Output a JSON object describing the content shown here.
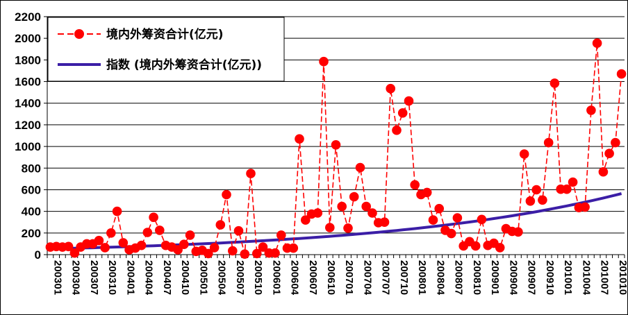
{
  "chart_data": {
    "type": "line",
    "title": "",
    "xlabel": "",
    "ylabel": "",
    "ylim": [
      0,
      2200
    ],
    "yticks": [
      0,
      200,
      400,
      600,
      800,
      1000,
      1200,
      1400,
      1600,
      1800,
      2000,
      2200
    ],
    "grid": "horizontal",
    "legend_position": "top-left",
    "x": [
      "200301",
      "200302",
      "200303",
      "200304",
      "200305",
      "200306",
      "200307",
      "200308",
      "200309",
      "200310",
      "200311",
      "200312",
      "200401",
      "200402",
      "200403",
      "200404",
      "200405",
      "200406",
      "200407",
      "200408",
      "200409",
      "200410",
      "200411",
      "200412",
      "200501",
      "200502",
      "200503",
      "200504",
      "200505",
      "200506",
      "200507",
      "200508",
      "200509",
      "200510",
      "200511",
      "200512",
      "200601",
      "200602",
      "200603",
      "200604",
      "200605",
      "200606",
      "200607",
      "200608",
      "200609",
      "200610",
      "200611",
      "200612",
      "200701",
      "200702",
      "200703",
      "200704",
      "200705",
      "200706",
      "200707",
      "200708",
      "200709",
      "200710",
      "200711",
      "200712",
      "200801",
      "200802",
      "200803",
      "200804",
      "200805",
      "200806",
      "200807",
      "200808",
      "200809",
      "200810",
      "200811",
      "200812",
      "200901",
      "200902",
      "200903",
      "200904",
      "200905",
      "200906",
      "200907",
      "200908",
      "200909",
      "200910",
      "200911",
      "200912",
      "201001",
      "201002",
      "201003",
      "201004",
      "201005",
      "201006",
      "201007",
      "201008",
      "201009",
      "201010",
      "201011"
    ],
    "x_tick_labels": [
      "200301",
      "200304",
      "200307",
      "200310",
      "200401",
      "200404",
      "200407",
      "200410",
      "200501",
      "200504",
      "200507",
      "200510",
      "200601",
      "200604",
      "200607",
      "200610",
      "200701",
      "200704",
      "200707",
      "200710",
      "200801",
      "200804",
      "200807",
      "200810",
      "200901",
      "200904",
      "200907",
      "200910",
      "201001",
      "201004",
      "201007",
      "201010"
    ],
    "series": [
      {
        "name": "境内外筹资合计(亿元)",
        "style": "dashed-markers",
        "color": "#ff0000",
        "values": [
          70,
          75,
          70,
          75,
          15,
          70,
          100,
          100,
          130,
          65,
          200,
          400,
          110,
          45,
          60,
          85,
          205,
          345,
          225,
          85,
          70,
          45,
          95,
          180,
          30,
          40,
          10,
          65,
          275,
          555,
          35,
          220,
          5,
          750,
          10,
          70,
          15,
          15,
          180,
          60,
          60,
          1070,
          320,
          375,
          385,
          1785,
          250,
          1015,
          445,
          245,
          535,
          805,
          445,
          385,
          295,
          300,
          1535,
          1150,
          1310,
          1420,
          645,
          555,
          575,
          320,
          425,
          225,
          195,
          340,
          80,
          120,
          80,
          325,
          85,
          105,
          65,
          240,
          215,
          210,
          930,
          495,
          600,
          505,
          1035,
          1585,
          605,
          605,
          670,
          435,
          440,
          1335,
          1955,
          765,
          935,
          1035,
          1670
        ]
      },
      {
        "name": "指数 (境内外筹资合计(亿元))",
        "style": "solid-trend",
        "color": "#3b1ea6",
        "values": [
          53.5,
          54.9,
          56.3,
          57.7,
          59.2,
          60.7,
          62.2,
          63.8,
          65.4,
          67.1,
          68.8,
          70.5,
          72.3,
          74.2,
          76.0,
          78.0,
          80.0,
          82.0,
          84.1,
          86.2,
          88.4,
          90.6,
          92.9,
          95.3,
          97.7,
          100.2,
          102.7,
          105.3,
          108.0,
          110.8,
          113.6,
          116.4,
          119.4,
          122.4,
          125.5,
          128.7,
          132.0,
          135.3,
          138.8,
          142.3,
          145.9,
          149.6,
          153.4,
          157.3,
          161.3,
          165.4,
          169.6,
          173.9,
          178.3,
          182.8,
          187.4,
          192.2,
          197.0,
          202.0,
          207.2,
          212.4,
          217.8,
          223.3,
          229.0,
          234.8,
          240.8,
          246.9,
          253.1,
          259.5,
          266.1,
          272.9,
          279.8,
          286.9,
          294.2,
          301.6,
          309.3,
          317.1,
          325.2,
          333.4,
          341.9,
          350.5,
          359.4,
          368.6,
          377.9,
          387.5,
          397.3,
          407.4,
          417.7,
          428.3,
          439.2,
          450.3,
          461.8,
          473.5,
          485.5,
          497.8,
          510.4,
          523.4,
          536.6,
          550.3,
          564.2
        ]
      }
    ]
  }
}
